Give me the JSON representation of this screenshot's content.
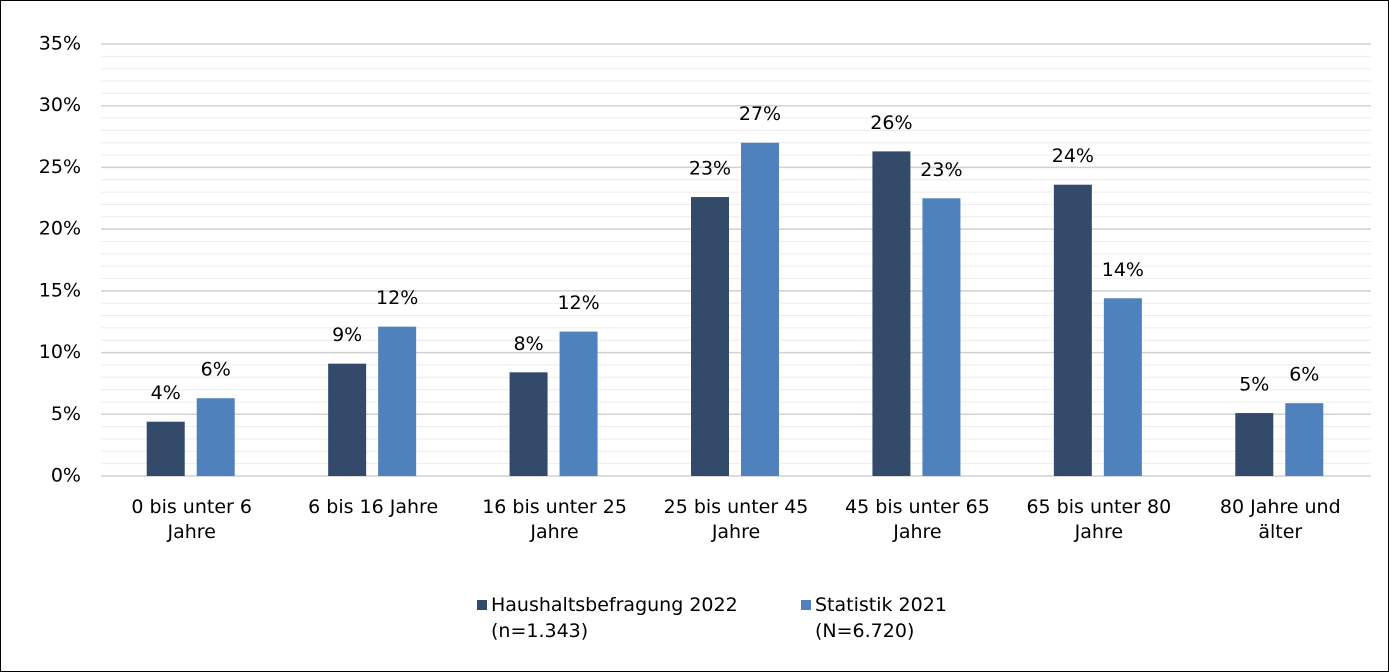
{
  "chart_data": {
    "type": "bar",
    "categories": [
      "0 bis unter 6 Jahre",
      "6 bis 16 Jahre",
      "16 bis unter 25 Jahre",
      "25 bis unter 45 Jahre",
      "45 bis unter 65 Jahre",
      "65 bis unter 80 Jahre",
      "80 Jahre und älter"
    ],
    "series": [
      {
        "name": "Haushaltsbefragung 2022 (n=1.343)",
        "color": "#344a6b",
        "values": [
          4.4,
          9.1,
          8.4,
          22.6,
          26.3,
          23.6,
          5.1
        ],
        "value_labels": [
          "4%",
          "9%",
          "8%",
          "23%",
          "26%",
          "24%",
          "5%"
        ]
      },
      {
        "name": "Statistik 2021 (N=6.720)",
        "color": "#4f81bd",
        "values": [
          6.3,
          12.1,
          11.7,
          27.0,
          22.5,
          14.4,
          5.9
        ],
        "value_labels": [
          "6%",
          "12%",
          "12%",
          "27%",
          "23%",
          "14%",
          "6%"
        ]
      }
    ],
    "ylim": [
      0,
      35
    ],
    "yticks": [
      {
        "value": 0,
        "label": "0%"
      },
      {
        "value": 5,
        "label": "5%"
      },
      {
        "value": 10,
        "label": "10%"
      },
      {
        "value": 15,
        "label": "15%"
      },
      {
        "value": 20,
        "label": "20%"
      },
      {
        "value": 25,
        "label": "25%"
      },
      {
        "value": 30,
        "label": "30%"
      },
      {
        "value": 35,
        "label": "35%"
      }
    ],
    "grid": true,
    "legend": "bottom"
  }
}
